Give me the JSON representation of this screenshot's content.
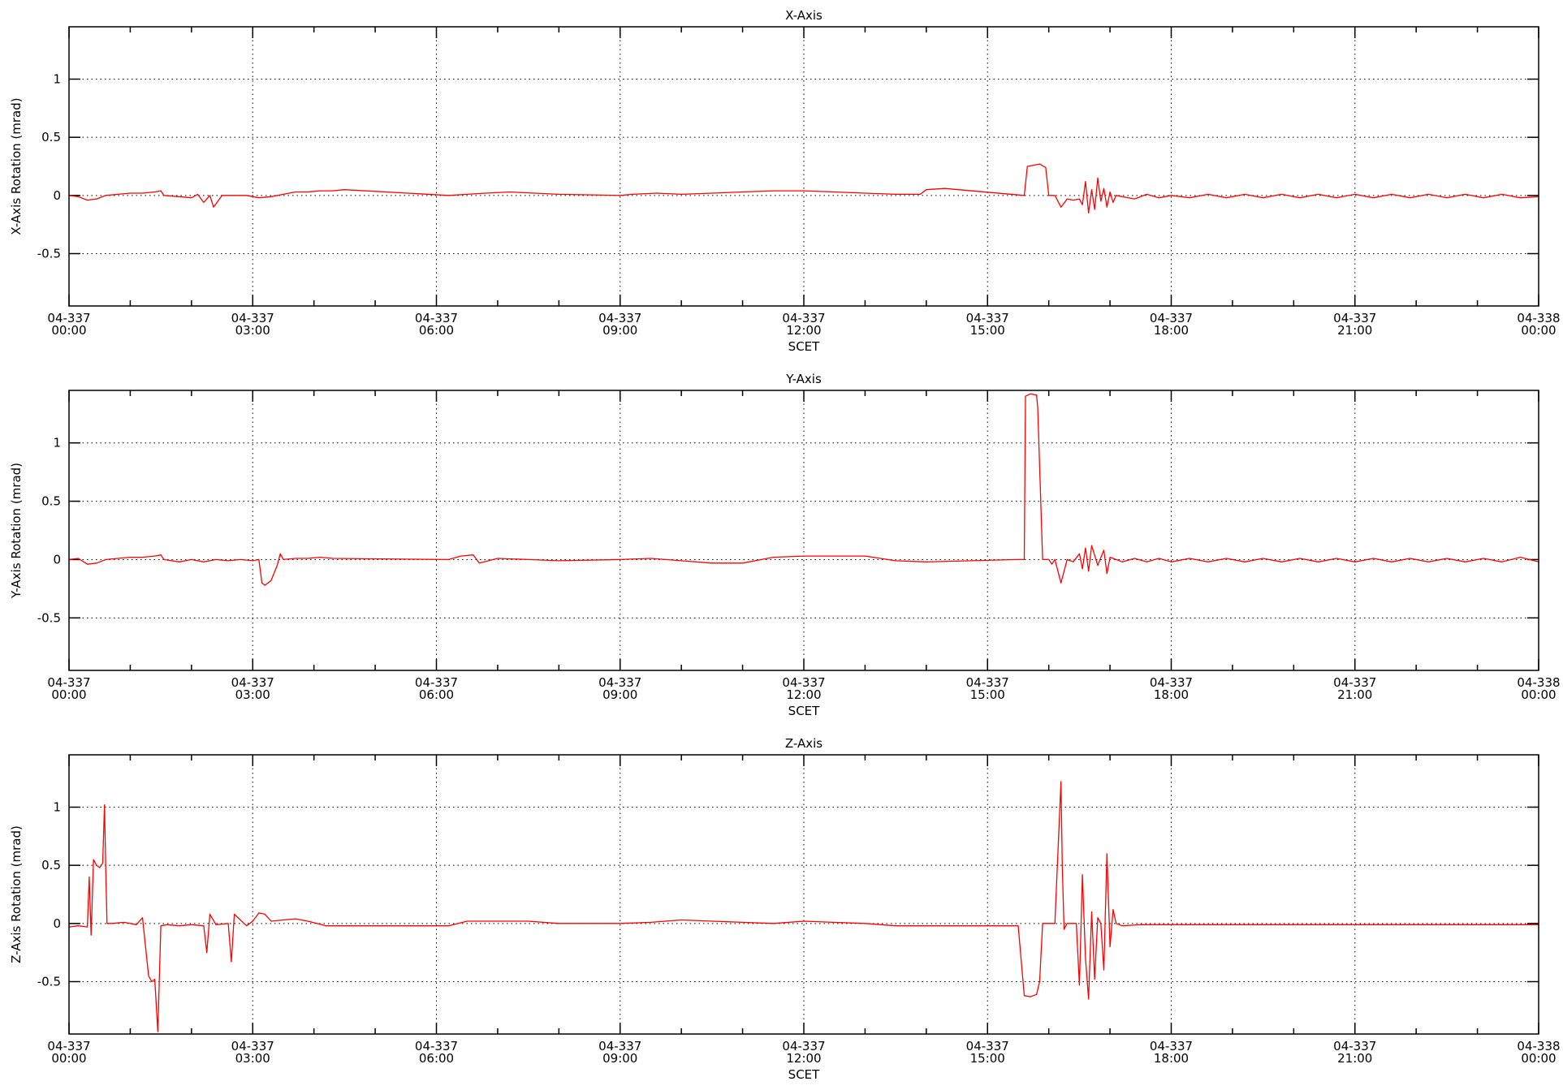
{
  "colors": {
    "trace": "#ff0000",
    "axis": "#000000",
    "background": "#ffffff"
  },
  "chart_data": [
    {
      "type": "line",
      "title": "X-Axis",
      "xlabel": "SCET",
      "ylabel": "X-Axis Rotation (mrad)",
      "xlim": [
        0,
        24
      ],
      "ylim": [
        -0.95,
        1.45
      ],
      "grid": true,
      "x_ticks": [
        {
          "value": 0,
          "line1": "04-337",
          "line2": "00:00"
        },
        {
          "value": 3,
          "line1": "04-337",
          "line2": "03:00"
        },
        {
          "value": 6,
          "line1": "04-337",
          "line2": "06:00"
        },
        {
          "value": 9,
          "line1": "04-337",
          "line2": "09:00"
        },
        {
          "value": 12,
          "line1": "04-337",
          "line2": "12:00"
        },
        {
          "value": 15,
          "line1": "04-337",
          "line2": "15:00"
        },
        {
          "value": 18,
          "line1": "04-337",
          "line2": "18:00"
        },
        {
          "value": 21,
          "line1": "04-337",
          "line2": "21:00"
        },
        {
          "value": 24,
          "line1": "04-338",
          "line2": "00:00"
        }
      ],
      "y_ticks": [
        {
          "value": -0.5,
          "label": "-0.5"
        },
        {
          "value": 0,
          "label": "0"
        },
        {
          "value": 0.5,
          "label": "0.5"
        },
        {
          "value": 1,
          "label": "1"
        }
      ],
      "series": [
        {
          "x": [
            0,
            0.15,
            0.3,
            0.45,
            0.6,
            0.8,
            1.0,
            1.2,
            1.4,
            1.5,
            1.55,
            1.8,
            2.0,
            2.1,
            2.2,
            2.3,
            2.36,
            2.5,
            2.7,
            2.9,
            3.1,
            3.3,
            3.5,
            3.7,
            3.9,
            4.1,
            4.3,
            4.5,
            6.2,
            6.5,
            6.8,
            7.2,
            7.6,
            8.0,
            9.0,
            9.2,
            9.6,
            10.0,
            10.5,
            11.0,
            11.5,
            12.0,
            12.5,
            13.0,
            13.5,
            13.9,
            14.0,
            14.3,
            15.6,
            15.65,
            15.75,
            15.85,
            15.95,
            16.0,
            16.1,
            16.2,
            16.3,
            16.4,
            16.5,
            16.55,
            16.6,
            16.65,
            16.7,
            16.75,
            16.8,
            16.85,
            16.9,
            16.95,
            17.0,
            17.05,
            17.1,
            17.2,
            17.4,
            17.6,
            17.8,
            18.0,
            18.3,
            18.6,
            18.9,
            19.2,
            19.5,
            19.8,
            20.1,
            20.4,
            20.7,
            21.0,
            21.3,
            21.6,
            21.9,
            22.2,
            22.5,
            22.8,
            23.1,
            23.4,
            23.7,
            24.0
          ],
          "y": [
            0.0,
            -0.01,
            -0.04,
            -0.03,
            0.0,
            0.01,
            0.02,
            0.02,
            0.03,
            0.04,
            0.0,
            -0.01,
            -0.02,
            0.01,
            -0.06,
            0.0,
            -0.1,
            0.0,
            0.0,
            0.0,
            -0.02,
            -0.01,
            0.01,
            0.03,
            0.03,
            0.04,
            0.04,
            0.05,
            0.0,
            0.01,
            0.02,
            0.03,
            0.02,
            0.01,
            0.0,
            0.01,
            0.02,
            0.01,
            0.02,
            0.03,
            0.04,
            0.04,
            0.03,
            0.02,
            0.01,
            0.01,
            0.05,
            0.06,
            0.0,
            0.25,
            0.26,
            0.27,
            0.24,
            0.0,
            0.0,
            -0.1,
            -0.03,
            -0.04,
            -0.03,
            -0.08,
            0.12,
            -0.15,
            0.05,
            -0.12,
            0.15,
            -0.05,
            0.06,
            -0.1,
            0.03,
            -0.06,
            0.0,
            -0.01,
            -0.03,
            0.01,
            -0.02,
            0.0,
            -0.02,
            0.01,
            -0.02,
            0.01,
            -0.02,
            0.01,
            -0.02,
            0.01,
            -0.02,
            0.01,
            -0.02,
            0.01,
            -0.02,
            0.01,
            -0.02,
            0.01,
            -0.02,
            0.01,
            -0.02,
            -0.01
          ]
        }
      ]
    },
    {
      "type": "line",
      "title": "Y-Axis",
      "xlabel": "SCET",
      "ylabel": "Y-Axis Rotation (mrad)",
      "xlim": [
        0,
        24
      ],
      "ylim": [
        -0.95,
        1.45
      ],
      "grid": true,
      "x_ticks": [
        {
          "value": 0,
          "line1": "04-337",
          "line2": "00:00"
        },
        {
          "value": 3,
          "line1": "04-337",
          "line2": "03:00"
        },
        {
          "value": 6,
          "line1": "04-337",
          "line2": "06:00"
        },
        {
          "value": 9,
          "line1": "04-337",
          "line2": "09:00"
        },
        {
          "value": 12,
          "line1": "04-337",
          "line2": "12:00"
        },
        {
          "value": 15,
          "line1": "04-337",
          "line2": "15:00"
        },
        {
          "value": 18,
          "line1": "04-337",
          "line2": "18:00"
        },
        {
          "value": 21,
          "line1": "04-337",
          "line2": "21:00"
        },
        {
          "value": 24,
          "line1": "04-338",
          "line2": "00:00"
        }
      ],
      "y_ticks": [
        {
          "value": -0.5,
          "label": "-0.5"
        },
        {
          "value": 0,
          "label": "0"
        },
        {
          "value": 0.5,
          "label": "0.5"
        },
        {
          "value": 1,
          "label": "1"
        }
      ],
      "series": [
        {
          "x": [
            0,
            0.15,
            0.3,
            0.45,
            0.6,
            0.8,
            1.0,
            1.2,
            1.4,
            1.5,
            1.55,
            1.8,
            2.0,
            2.2,
            2.4,
            2.6,
            2.8,
            3.0,
            3.1,
            3.15,
            3.2,
            3.3,
            3.4,
            3.45,
            3.5,
            3.7,
            3.9,
            4.1,
            4.3,
            6.2,
            6.4,
            6.6,
            6.7,
            7.0,
            7.5,
            8.0,
            9.0,
            9.5,
            10.0,
            10.5,
            11.0,
            11.5,
            12.0,
            13.0,
            13.5,
            14.0,
            15.5,
            15.6,
            15.62,
            15.7,
            15.8,
            15.82,
            15.9,
            16.0,
            16.05,
            16.1,
            16.2,
            16.3,
            16.4,
            16.5,
            16.55,
            16.6,
            16.65,
            16.7,
            16.8,
            16.9,
            16.95,
            17.0,
            17.1,
            17.2,
            17.4,
            17.6,
            17.8,
            18.0,
            18.3,
            18.6,
            18.9,
            19.2,
            19.5,
            19.8,
            20.1,
            20.4,
            20.7,
            21.0,
            21.3,
            21.6,
            21.9,
            22.2,
            22.5,
            22.8,
            23.1,
            23.4,
            23.7,
            24.0
          ],
          "y": [
            0.0,
            0.01,
            -0.04,
            -0.03,
            0.0,
            0.01,
            0.02,
            0.02,
            0.03,
            0.04,
            0.0,
            -0.02,
            0.0,
            -0.02,
            0.0,
            -0.01,
            0.0,
            -0.01,
            0.0,
            -0.2,
            -0.22,
            -0.18,
            -0.05,
            0.05,
            0.0,
            0.01,
            0.01,
            0.02,
            0.01,
            0.0,
            0.03,
            0.04,
            -0.03,
            0.01,
            0.0,
            -0.01,
            0.0,
            0.01,
            -0.01,
            -0.03,
            -0.03,
            0.02,
            0.03,
            0.03,
            -0.01,
            -0.02,
            0.0,
            0.0,
            1.4,
            1.42,
            1.41,
            1.3,
            0.0,
            0.0,
            -0.04,
            0.0,
            -0.2,
            0.0,
            -0.02,
            0.05,
            -0.08,
            0.1,
            -0.1,
            0.12,
            -0.05,
            0.08,
            -0.12,
            0.02,
            0.0,
            -0.02,
            0.01,
            -0.02,
            0.01,
            -0.02,
            0.01,
            -0.02,
            0.01,
            -0.02,
            0.01,
            -0.02,
            0.01,
            -0.02,
            0.01,
            -0.02,
            0.01,
            -0.02,
            0.01,
            -0.02,
            0.01,
            -0.02,
            0.01,
            -0.02,
            0.02,
            -0.02
          ]
        }
      ]
    },
    {
      "type": "line",
      "title": "Z-Axis",
      "xlabel": "SCET",
      "ylabel": "Z-Axis Rotation (mrad)",
      "xlim": [
        0,
        24
      ],
      "ylim": [
        -0.95,
        1.45
      ],
      "grid": true,
      "x_ticks": [
        {
          "value": 0,
          "line1": "04-337",
          "line2": "00:00"
        },
        {
          "value": 3,
          "line1": "04-337",
          "line2": "03:00"
        },
        {
          "value": 6,
          "line1": "04-337",
          "line2": "06:00"
        },
        {
          "value": 9,
          "line1": "04-337",
          "line2": "09:00"
        },
        {
          "value": 12,
          "line1": "04-337",
          "line2": "12:00"
        },
        {
          "value": 15,
          "line1": "04-337",
          "line2": "15:00"
        },
        {
          "value": 18,
          "line1": "04-337",
          "line2": "18:00"
        },
        {
          "value": 21,
          "line1": "04-337",
          "line2": "21:00"
        },
        {
          "value": 24,
          "line1": "04-338",
          "line2": "00:00"
        }
      ],
      "y_ticks": [
        {
          "value": -0.5,
          "label": "-0.5"
        },
        {
          "value": 0,
          "label": "0"
        },
        {
          "value": 0.5,
          "label": "0.5"
        },
        {
          "value": 1,
          "label": "1"
        }
      ],
      "series": [
        {
          "x": [
            0,
            0.15,
            0.3,
            0.33,
            0.36,
            0.4,
            0.45,
            0.5,
            0.55,
            0.58,
            0.6,
            0.62,
            0.7,
            0.9,
            1.1,
            1.2,
            1.3,
            1.35,
            1.4,
            1.45,
            1.5,
            1.6,
            1.8,
            2.0,
            2.2,
            2.25,
            2.3,
            2.4,
            2.6,
            2.65,
            2.7,
            2.9,
            2.95,
            3.0,
            3.1,
            3.2,
            3.3,
            3.5,
            3.7,
            3.9,
            4.2,
            4.5,
            6.2,
            6.5,
            7.0,
            7.5,
            8.0,
            9.0,
            9.5,
            10.0,
            10.5,
            11.0,
            11.5,
            12.0,
            13.0,
            13.5,
            14.0,
            15.5,
            15.6,
            15.7,
            15.8,
            15.85,
            15.9,
            16.0,
            16.1,
            16.2,
            16.22,
            16.25,
            16.3,
            16.45,
            16.5,
            16.55,
            16.6,
            16.65,
            16.7,
            16.75,
            16.8,
            16.85,
            16.9,
            16.95,
            17.0,
            17.05,
            17.1,
            17.2,
            17.5,
            18.0,
            18.5,
            19.0,
            19.5,
            20.0,
            20.5,
            21.0,
            21.5,
            22.0,
            22.5,
            23.0,
            23.5,
            24.0
          ],
          "y": [
            -0.03,
            -0.02,
            -0.03,
            0.4,
            -0.1,
            0.55,
            0.5,
            0.48,
            0.52,
            1.02,
            0.45,
            0.0,
            0.0,
            0.01,
            -0.01,
            0.05,
            -0.45,
            -0.5,
            -0.48,
            -0.93,
            -0.02,
            -0.01,
            -0.02,
            -0.01,
            -0.02,
            -0.25,
            0.08,
            -0.01,
            0.0,
            -0.33,
            0.08,
            -0.02,
            0.0,
            0.02,
            0.09,
            0.08,
            0.02,
            0.03,
            0.04,
            0.02,
            -0.02,
            -0.02,
            -0.02,
            0.02,
            0.02,
            0.02,
            0.0,
            0.0,
            0.01,
            0.03,
            0.02,
            0.01,
            0.0,
            0.02,
            0.0,
            -0.02,
            -0.02,
            -0.02,
            -0.62,
            -0.63,
            -0.61,
            -0.5,
            0.0,
            0.0,
            0.0,
            1.22,
            0.5,
            -0.05,
            0.0,
            0.0,
            -0.53,
            0.42,
            -0.3,
            -0.65,
            0.1,
            -0.48,
            0.05,
            0.0,
            -0.4,
            0.6,
            -0.2,
            0.12,
            0.0,
            -0.02,
            -0.01,
            -0.01,
            -0.01,
            -0.01,
            -0.01,
            -0.01,
            -0.01,
            -0.01,
            -0.01,
            -0.01,
            -0.01,
            -0.01,
            -0.01,
            -0.01
          ]
        }
      ]
    }
  ]
}
